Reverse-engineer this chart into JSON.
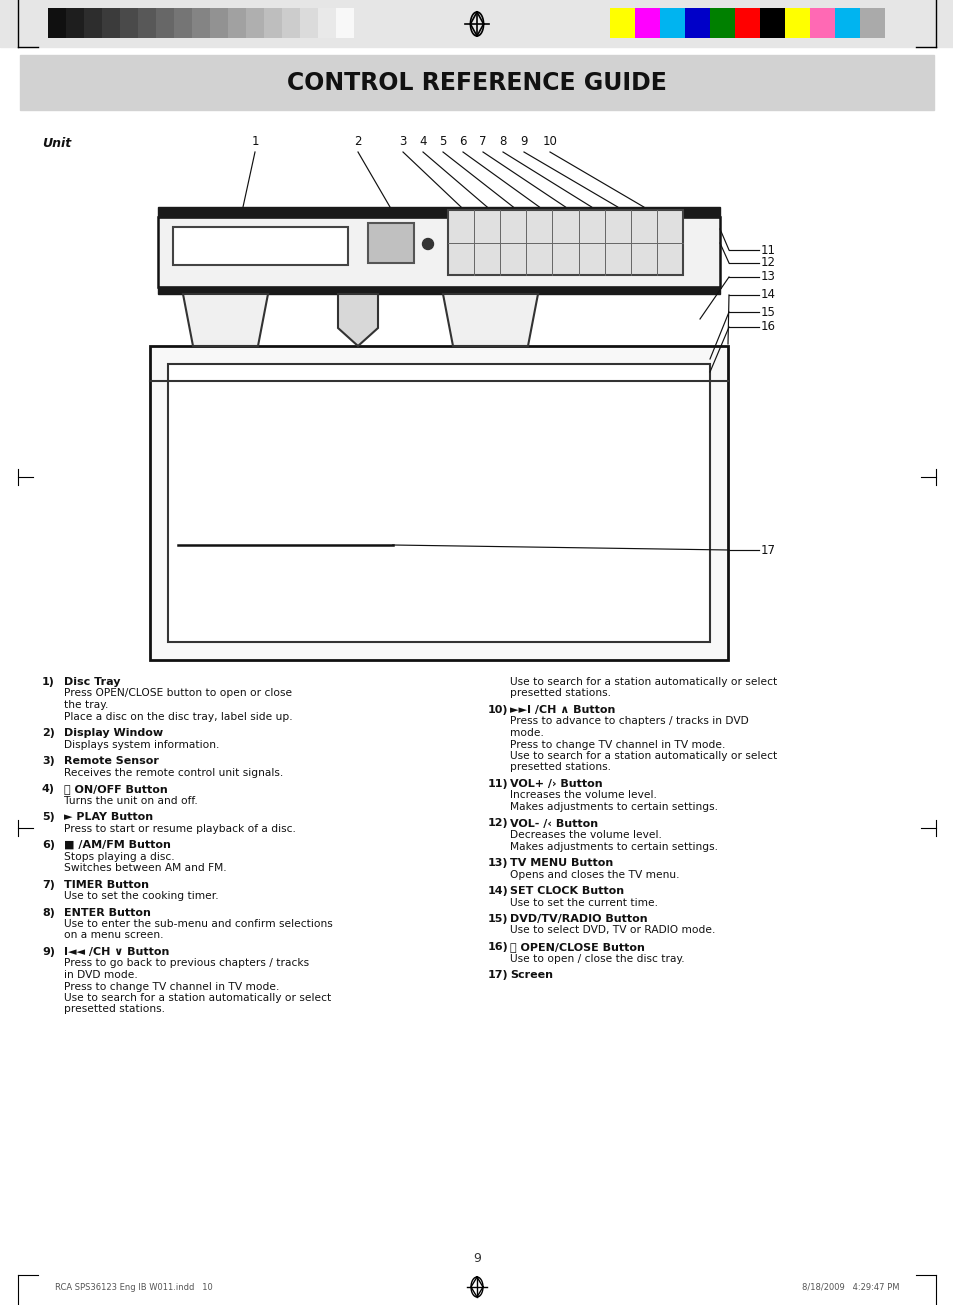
{
  "title": "CONTROL REFERENCE GUIDE",
  "unit_label": "Unit",
  "bg_color": "#ffffff",
  "header_bg": "#d0d0d0",
  "page_number": "9",
  "footer_left": "RCA SPS36123 Eng IB W011.indd   10",
  "footer_right": "8/18/2009   4:29:47 PM",
  "gray_bars": [
    "#101010",
    "#1e1e1e",
    "#2d2d2d",
    "#3b3b3b",
    "#4a4a4a",
    "#585858",
    "#676767",
    "#757575",
    "#848484",
    "#929292",
    "#a1a1a1",
    "#afafaf",
    "#bebebe",
    "#cccccc",
    "#dbdbdb",
    "#e9e9e9",
    "#f8f8f8"
  ],
  "color_bars": [
    "#ffff00",
    "#ff00ff",
    "#00b4f0",
    "#0000c8",
    "#008000",
    "#ff0000",
    "#000000",
    "#ffff00",
    "#ff69b4",
    "#00b4f0",
    "#aaaaaa"
  ],
  "items_left": [
    {
      "num": "1)",
      "bold": "Disc Tray",
      "text": "Press OPEN/CLOSE button to open or close\nthe tray.\nPlace a disc on the disc tray, label side up."
    },
    {
      "num": "2)",
      "bold": "Display Window",
      "text": "Displays system information."
    },
    {
      "num": "3)",
      "bold": "Remote Sensor",
      "text": "Receives the remote control unit signals."
    },
    {
      "num": "4)",
      "bold": "ⓘ ON/OFF Button",
      "text": "Turns the unit on and off."
    },
    {
      "num": "5)",
      "bold": "► PLAY Button",
      "text": "Press to start or resume playback of a disc."
    },
    {
      "num": "6)",
      "bold": "■ /AM/FM Button",
      "text": "Stops playing a disc.\nSwitches between AM and FM."
    },
    {
      "num": "7)",
      "bold": "TIMER Button",
      "text": "Use to set the cooking timer."
    },
    {
      "num": "8)",
      "bold": "ENTER Button",
      "text": "Use to enter the sub-menu and confirm selections\non a menu screen."
    },
    {
      "num": "9)",
      "bold": "I◄◄ /CH ∨ Button",
      "text": "Press to go back to previous chapters / tracks\nin DVD mode.\nPress to change TV channel in TV mode.\nUse to search for a station automatically or select\npresetted stations."
    }
  ],
  "items_right": [
    {
      "num": "10)",
      "bold": "►►I /CH ∧ Button",
      "text": "Press to advance to chapters / tracks in DVD\nmode.\nPress to change TV channel in TV mode.\nUse to search for a station automatically or select\npresetted stations."
    },
    {
      "num": "11)",
      "bold": "VOL+ /› Button",
      "text": "Increases the volume level.\nMakes adjustments to certain settings."
    },
    {
      "num": "12)",
      "bold": "VOL- /‹ Button",
      "text": "Decreases the volume level.\nMakes adjustments to certain settings."
    },
    {
      "num": "13)",
      "bold": "TV MENU Button",
      "text": "Opens and closes the TV menu."
    },
    {
      "num": "14)",
      "bold": "SET CLOCK Button",
      "text": "Use to set the current time."
    },
    {
      "num": "15)",
      "bold": "DVD/TV/RADIO Button",
      "text": "Use to select DVD, TV or RADIO mode."
    },
    {
      "num": "16)",
      "bold": "⏫ OPEN/CLOSE Button",
      "text": "Use to open / close the disc tray."
    },
    {
      "num": "17)",
      "bold": "Screen",
      "text": ""
    }
  ]
}
